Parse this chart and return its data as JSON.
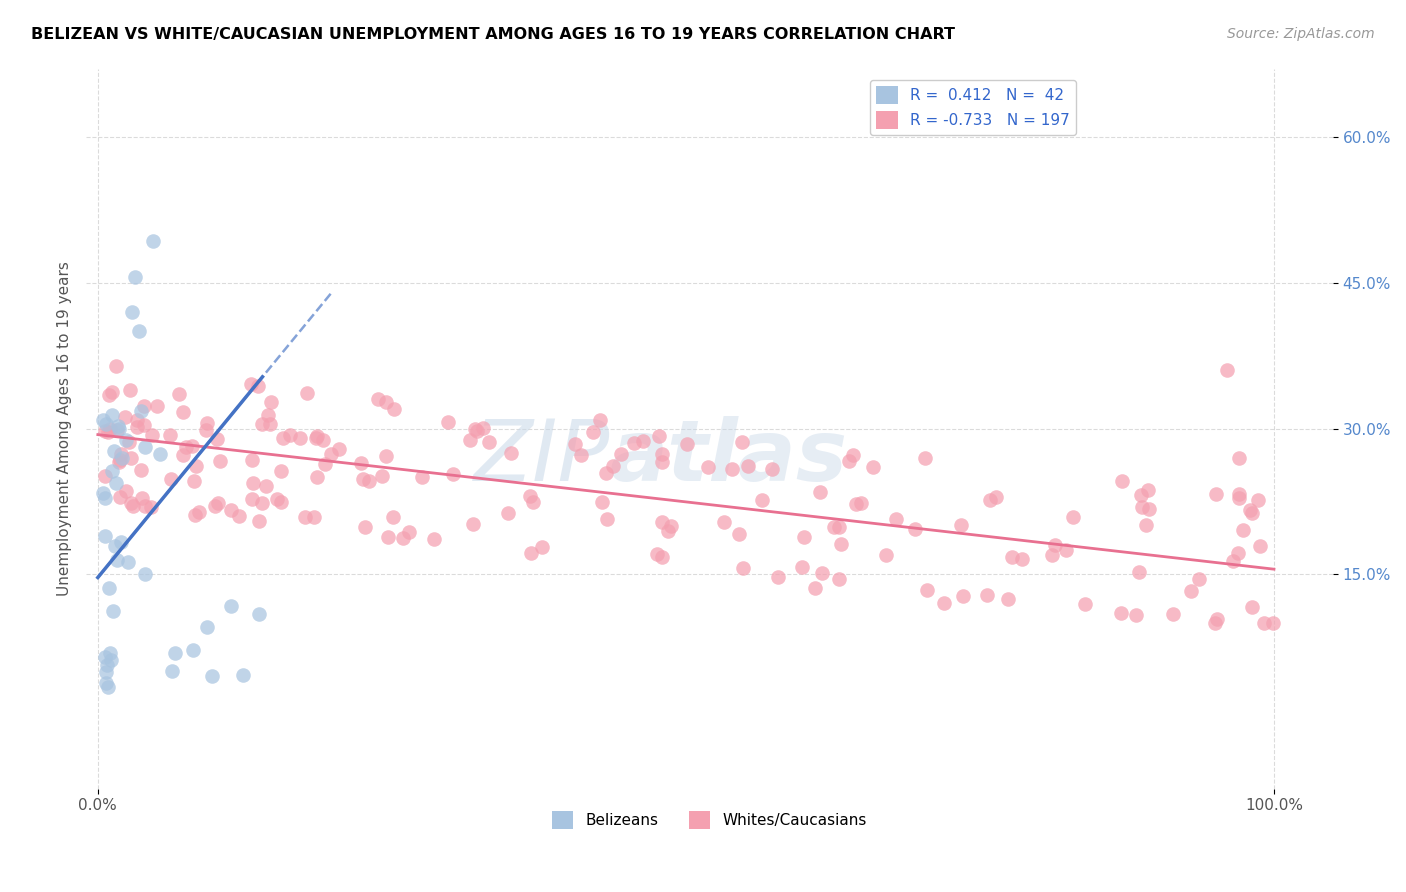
{
  "title": "BELIZEAN VS WHITE/CAUCASIAN UNEMPLOYMENT AMONG AGES 16 TO 19 YEARS CORRELATION CHART",
  "source": "Source: ZipAtlas.com",
  "ylabel": "Unemployment Among Ages 16 to 19 years",
  "color_blue": "#a8c4e0",
  "color_pink": "#f4a0b0",
  "line_blue": "#4472c4",
  "line_pink": "#e87090",
  "watermark_zip": "ZIP",
  "watermark_atlas": "atlas",
  "r_blue": 0.412,
  "n_blue": 42,
  "r_pink": -0.733,
  "n_pink": 197,
  "xlim": [
    -0.01,
    1.05
  ],
  "ylim": [
    -0.07,
    0.67
  ],
  "yticks": [
    0.15,
    0.3,
    0.45,
    0.6
  ],
  "ytick_labels": [
    "15.0%",
    "30.0%",
    "45.0%",
    "60.0%"
  ],
  "xtick_labels": [
    "0.0%",
    "100.0%"
  ],
  "xtick_vals": [
    0.0,
    1.0
  ]
}
